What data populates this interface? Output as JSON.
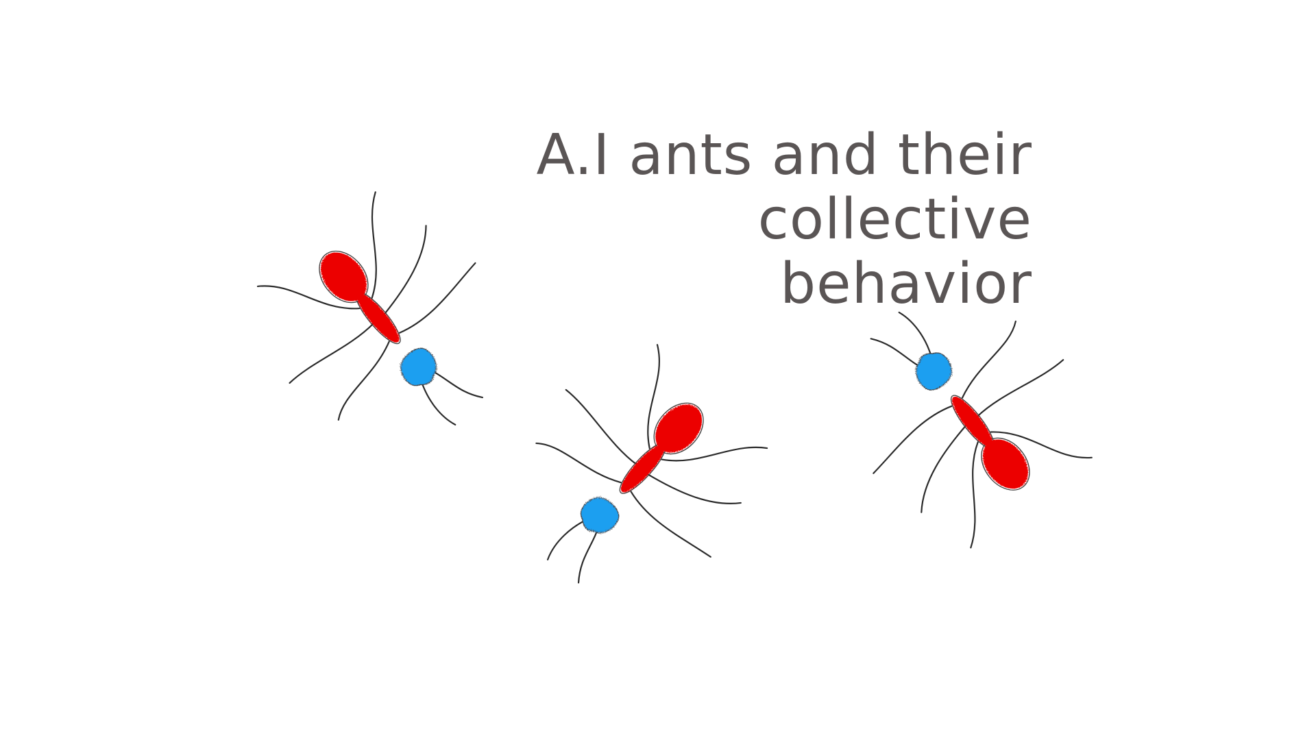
{
  "title": {
    "line1": "A.I ants and their collective",
    "line2": "behavior"
  },
  "colors": {
    "background": "#ffffff",
    "title_text": "#5a5555",
    "ant_body": "#ec0000",
    "ant_head": "#1e9ff0",
    "ant_legs": "#2b2b2b"
  },
  "illustration": {
    "ants": [
      {
        "name": "ant-left",
        "head_color": "#1e9ff0",
        "body_color": "#ec0000"
      },
      {
        "name": "ant-middle",
        "head_color": "#1e9ff0",
        "body_color": "#ec0000"
      },
      {
        "name": "ant-right",
        "head_color": "#1e9ff0",
        "body_color": "#ec0000"
      }
    ]
  }
}
